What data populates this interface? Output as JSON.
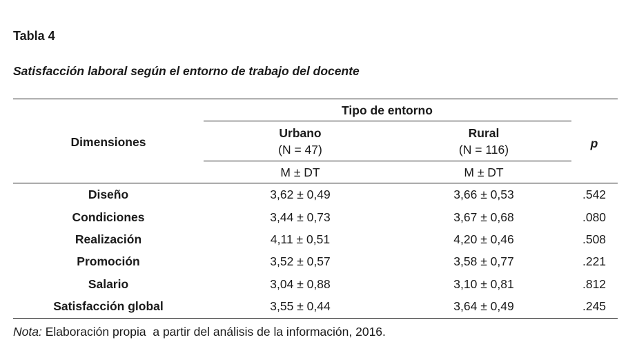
{
  "table": {
    "number": "Tabla 4",
    "title": "Satisfacción laboral según el entorno de trabajo del docente",
    "group_header": "Tipo de entorno",
    "row_header": "Dimensiones",
    "p_header": "p",
    "columns": [
      {
        "name": "Urbano",
        "n": "(N = 47)",
        "stat": "M ± DT"
      },
      {
        "name": "Rural",
        "n": "(N = 116)",
        "stat": "M ± DT"
      }
    ],
    "rows": [
      {
        "dimension": "Diseño",
        "urbano": "3,62 ± 0,49",
        "rural": "3,66 ± 0,53",
        "p": ".542"
      },
      {
        "dimension": "Condiciones",
        "urbano": "3,44 ± 0,73",
        "rural": "3,67 ± 0,68",
        "p": ".080"
      },
      {
        "dimension": "Realización",
        "urbano": "4,11 ± 0,51",
        "rural": "4,20 ± 0,46",
        "p": ".508"
      },
      {
        "dimension": "Promoción",
        "urbano": "3,52 ± 0,57",
        "rural": "3,58 ± 0,77",
        "p": ".221"
      },
      {
        "dimension": "Salario",
        "urbano": "3,04 ± 0,88",
        "rural": "3,10 ± 0,81",
        "p": ".812"
      },
      {
        "dimension": "Satisfacción global",
        "urbano": "3,55 ± 0,44",
        "rural": "3,64 ± 0,49",
        "p": ".245"
      }
    ]
  },
  "note": {
    "label": "Nota:",
    "text": " Elaboración propia  a partir del análisis de la información, 2016."
  }
}
